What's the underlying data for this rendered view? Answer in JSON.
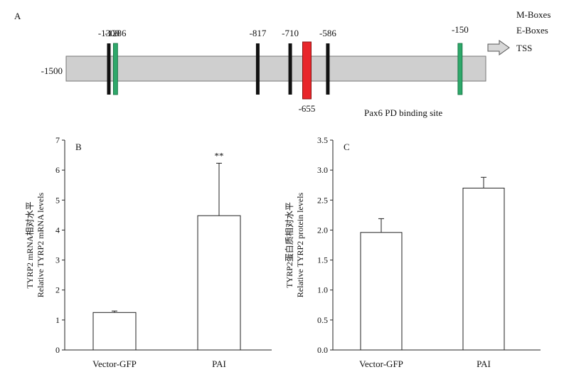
{
  "panels": {
    "a": {
      "panel_label": "A",
      "start_label": "-1500",
      "legend": {
        "m_boxes": "M-Boxes",
        "e_boxes": "E-Boxes",
        "tss": "TSS",
        "pax6": "Pax6 PD binding site"
      },
      "colors": {
        "m_box": "#111111",
        "e_box": "#2ea86a",
        "pax6": "#e8262b",
        "bar": "#cfcfcf"
      },
      "sites": [
        {
          "label": "-1308",
          "pos": -1308,
          "kind": "m_box"
        },
        {
          "label": "-1286",
          "pos": -1286,
          "kind": "e_box"
        },
        {
          "label": "-817",
          "pos": -817,
          "kind": "m_box"
        },
        {
          "label": "-710",
          "pos": -710,
          "kind": "m_box"
        },
        {
          "label": "-655",
          "pos": -655,
          "kind": "pax6"
        },
        {
          "label": "-586",
          "pos": -586,
          "kind": "m_box"
        },
        {
          "label": "-150",
          "pos": -150,
          "kind": "e_box"
        }
      ]
    },
    "b": {
      "panel_label": "B"
    },
    "c": {
      "panel_label": "C"
    }
  },
  "chart_data": [
    {
      "type": "bar",
      "panel": "B",
      "categories": [
        "Vector-GFP",
        "PAI"
      ],
      "series": [
        {
          "values": [
            1.25,
            4.48
          ],
          "errors": [
            0.05,
            1.75
          ]
        }
      ],
      "ylabel_lines": [
        "TYRP2 mRNA相对水平",
        "Relative TYRP2 mRNA levels"
      ],
      "ylim": [
        0,
        7
      ],
      "yticks": [
        "0",
        "1",
        "2",
        "3",
        "4",
        "5",
        "6",
        "7"
      ],
      "annotations": [
        {
          "category": "PAI",
          "text": "**"
        }
      ],
      "grid": false
    },
    {
      "type": "bar",
      "panel": "C",
      "categories": [
        "Vector-GFP",
        "PAI"
      ],
      "series": [
        {
          "values": [
            1.96,
            2.7
          ],
          "errors": [
            0.23,
            0.18
          ]
        }
      ],
      "ylabel_lines": [
        "TYRP2蛋白质相对水平",
        "Relative TYRP2 protein levels"
      ],
      "ylim": [
        0,
        3.5
      ],
      "yticks": [
        "0.0",
        "0.5",
        "1.0",
        "1.5",
        "2.0",
        "2.5",
        "3.0",
        "3.5"
      ],
      "annotations": [],
      "grid": false
    }
  ]
}
